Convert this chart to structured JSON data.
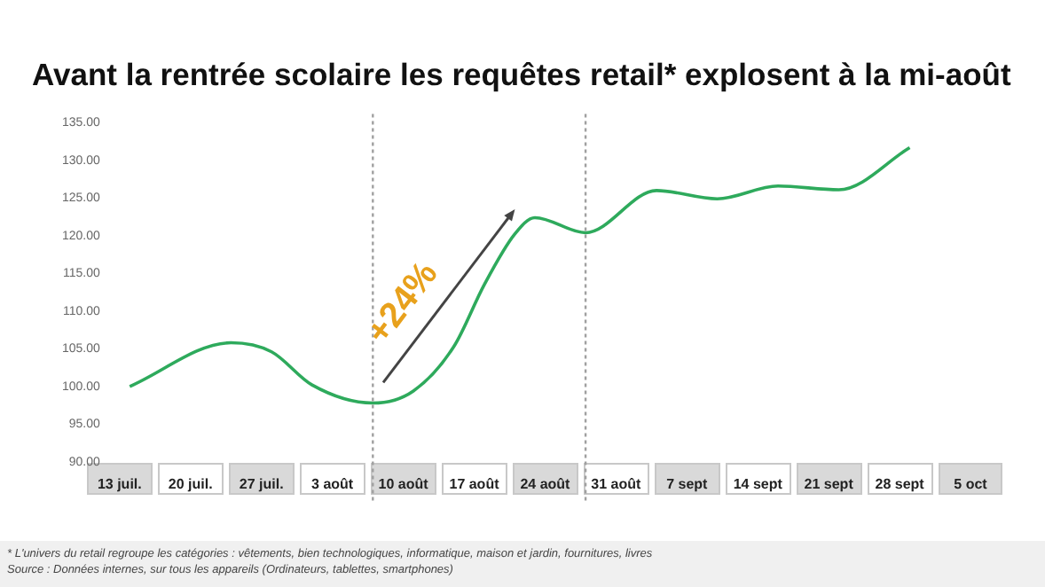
{
  "chart_data": {
    "type": "line",
    "title": "Avant la rentrée scolaire les requêtes retail* explosent à la mi-août",
    "x": [
      "--07-14",
      "--07-24",
      "--07-28",
      "--08-01",
      "--08-07",
      "--08-11",
      "--08-15",
      "--08-18",
      "--08-21",
      "--08-23",
      "--08-28",
      "--09-04",
      "--09-10",
      "--09-16",
      "--09-22",
      "--09-29"
    ],
    "series": [
      {
        "color": "#2eaa5c",
        "values": [
          100,
          105.8,
          104.6,
          100.2,
          97.8,
          99.4,
          105.3,
          113.5,
          120.2,
          122.4,
          120.4,
          126,
          124.9,
          126.6,
          126.1,
          131.7
        ]
      }
    ],
    "xlim": [
      "--07-13",
      "--10-05"
    ],
    "xticks": [
      {
        "value": "--07-13",
        "label": "13 juil."
      },
      {
        "value": "--07-20",
        "label": "20 juil."
      },
      {
        "value": "--07-27",
        "label": "27 juil."
      },
      {
        "value": "--08-03",
        "label": "3 août"
      },
      {
        "value": "--08-10",
        "label": "10 août"
      },
      {
        "value": "--08-17",
        "label": "17 août"
      },
      {
        "value": "--08-24",
        "label": "24 août"
      },
      {
        "value": "--08-31",
        "label": "31 août"
      },
      {
        "value": "--09-07",
        "label": "7 sept"
      },
      {
        "value": "--09-14",
        "label": "14 sept"
      },
      {
        "value": "--09-21",
        "label": "21 sept"
      },
      {
        "value": "--09-28",
        "label": "28 sept"
      },
      {
        "value": "--10-05",
        "label": "5 oct"
      }
    ],
    "ylim": [
      90,
      135
    ],
    "yticks": [
      {
        "value": 90,
        "label": "90.00"
      },
      {
        "value": 95,
        "label": "95.00"
      },
      {
        "value": 100,
        "label": "100.00"
      },
      {
        "value": 105,
        "label": "105.00"
      },
      {
        "value": 110,
        "label": "110.00"
      },
      {
        "value": 115,
        "label": "115.00"
      },
      {
        "value": 120,
        "label": "120.00"
      },
      {
        "value": 125,
        "label": "125.00"
      },
      {
        "value": 130,
        "label": "130.00"
      },
      {
        "value": 135,
        "label": "135.00"
      }
    ],
    "ref_lines": [
      {
        "axis": "x",
        "value": "--08-07",
        "color": "#a0a0a0",
        "line_style": "dotted"
      },
      {
        "axis": "x",
        "value": "--08-28",
        "color": "#a0a0a0",
        "line_style": "dotted"
      }
    ],
    "annotations": [
      "+24%",
      "* L'univers du retail regroupe les catégories : vêtements, bien technologiques, informatique, maison et jardin, fournitures, livres",
      "Source : Données internes, sur tous les appareils (Ordinateurs, tablettes, smartphones)"
    ],
    "grid": false,
    "legend": false
  }
}
